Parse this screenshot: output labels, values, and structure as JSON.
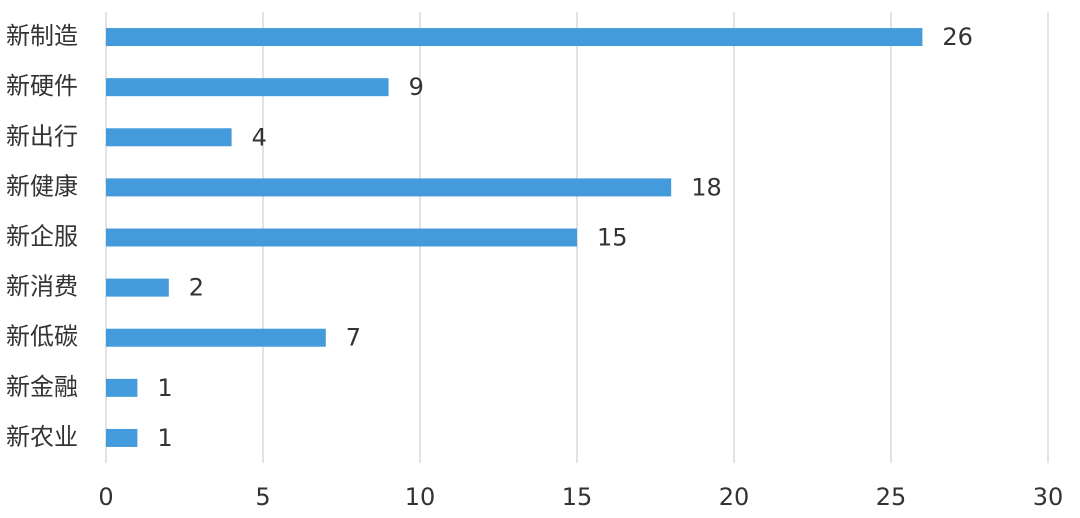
{
  "chart_data": {
    "type": "bar",
    "orientation": "horizontal",
    "categories": [
      "新制造",
      "新硬件",
      "新出行",
      "新健康",
      "新企服",
      "新消费",
      "新低碳",
      "新金融",
      "新农业"
    ],
    "values": [
      26,
      9,
      4,
      18,
      15,
      2,
      7,
      1,
      1
    ],
    "color": "#449bdb",
    "xlim": [
      0,
      30
    ],
    "xticks": [
      0,
      5,
      10,
      15,
      20,
      25,
      30
    ],
    "grid": true,
    "data_labels": true
  }
}
